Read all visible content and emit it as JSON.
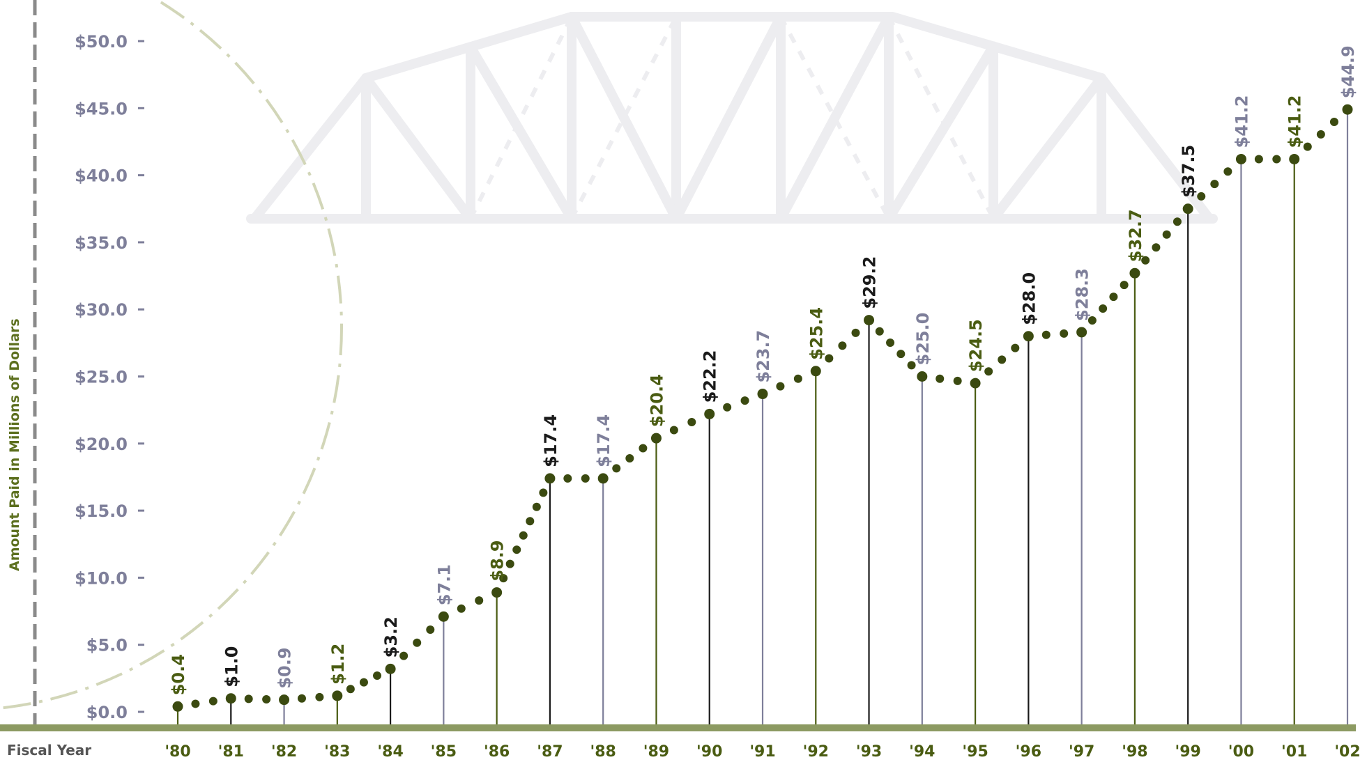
{
  "chart_data": {
    "type": "line",
    "ylabel": "Amount Paid in Millions of Dollars",
    "xlabel": "Fiscal Year",
    "ylim": [
      0,
      50
    ],
    "grid": false,
    "legend": "none",
    "yticks": [
      {
        "value": 0,
        "label": "$0.0"
      },
      {
        "value": 5,
        "label": "$5.0"
      },
      {
        "value": 10,
        "label": "$10.0"
      },
      {
        "value": 15,
        "label": "$15.0"
      },
      {
        "value": 20,
        "label": "$20.0"
      },
      {
        "value": 25,
        "label": "$25.0"
      },
      {
        "value": 30,
        "label": "$30.0"
      },
      {
        "value": 35,
        "label": "$35.0"
      },
      {
        "value": 40,
        "label": "$40.0"
      },
      {
        "value": 45,
        "label": "$45.0"
      },
      {
        "value": 50,
        "label": "$50.0"
      }
    ],
    "categories": [
      "'80",
      "'81",
      "'82",
      "'83",
      "'84",
      "'85",
      "'86",
      "'87",
      "'88",
      "'89",
      "'90",
      "'91",
      "'92",
      "'93",
      "'94",
      "'95",
      "'96",
      "'97",
      "'98",
      "'99",
      "'00",
      "'01",
      "'02"
    ],
    "values": [
      0.4,
      1.0,
      0.9,
      1.2,
      3.2,
      7.1,
      8.9,
      17.4,
      17.4,
      20.4,
      22.2,
      23.7,
      25.4,
      29.2,
      25.0,
      24.5,
      28.0,
      28.3,
      32.7,
      37.5,
      41.2,
      41.2,
      44.9
    ],
    "data_labels": [
      "$0.4",
      "$1.0",
      "$0.9",
      "$1.2",
      "$3.2",
      "$7.1",
      "$8.9",
      "$17.4",
      "$17.4",
      "$20.4",
      "$22.2",
      "$23.7",
      "$25.4",
      "$29.2",
      "$25.0",
      "$24.5",
      "$28.0",
      "$28.3",
      "$32.7",
      "$37.5",
      "$41.2",
      "$41.2",
      "$44.9"
    ],
    "label_colors": [
      "green",
      "black",
      "gray",
      "green",
      "black",
      "gray",
      "green",
      "black",
      "gray",
      "green",
      "black",
      "gray",
      "green",
      "black",
      "gray",
      "green",
      "black",
      "gray",
      "green",
      "black",
      "gray",
      "green",
      "gray"
    ]
  },
  "colors": {
    "green": "#4a5c12",
    "black": "#1a1a1a",
    "gray": "#7e7f9a",
    "dot": "#3b4a10",
    "axis_bar": "#8c9a62",
    "bridge": "#ededf0",
    "circle": "#d2d6b8",
    "dashed_axis": "#8a8a8a"
  }
}
